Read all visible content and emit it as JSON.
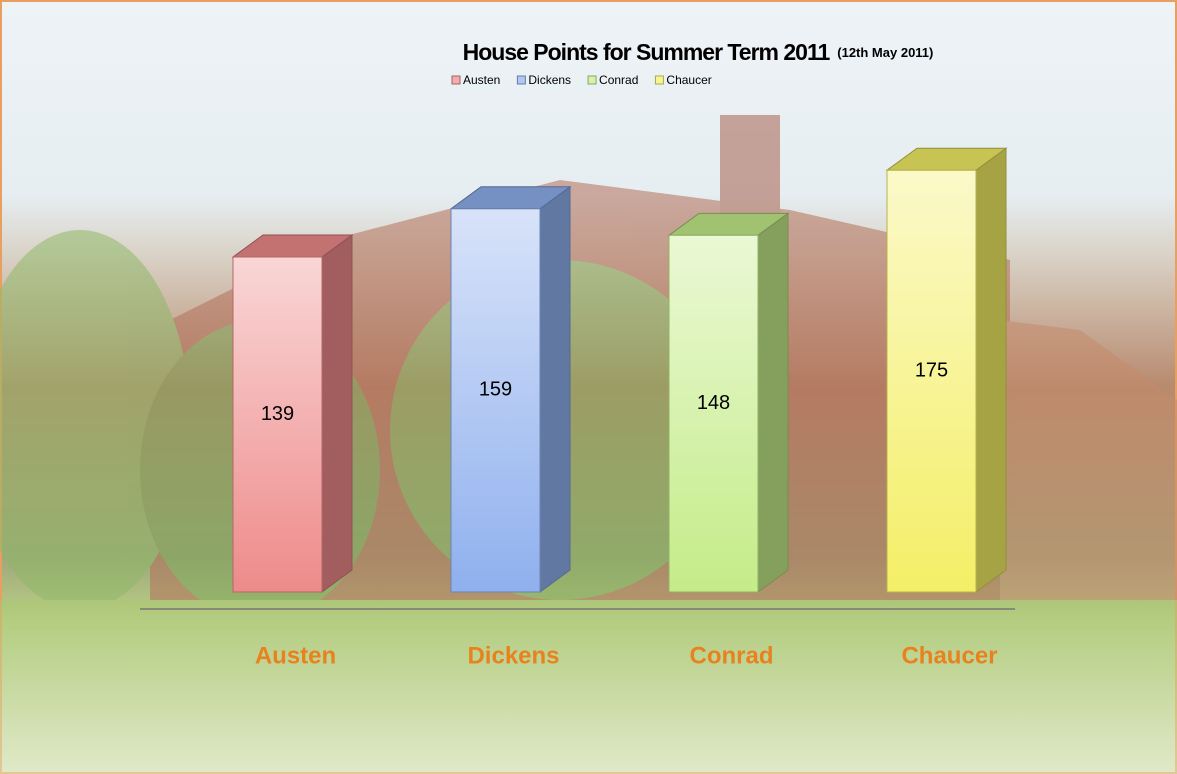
{
  "chart_data": {
    "type": "bar3d",
    "title": "House Points for Summer Term 2011",
    "subtitle": "(12th May 2011)",
    "categories": [
      "Austen",
      "Dickens",
      "Conrad",
      "Chaucer"
    ],
    "values": [
      139,
      159,
      148,
      175
    ],
    "colors": [
      "#ee8a8a",
      "#8fb0ee",
      "#c4ec88",
      "#f4ef66"
    ]
  }
}
